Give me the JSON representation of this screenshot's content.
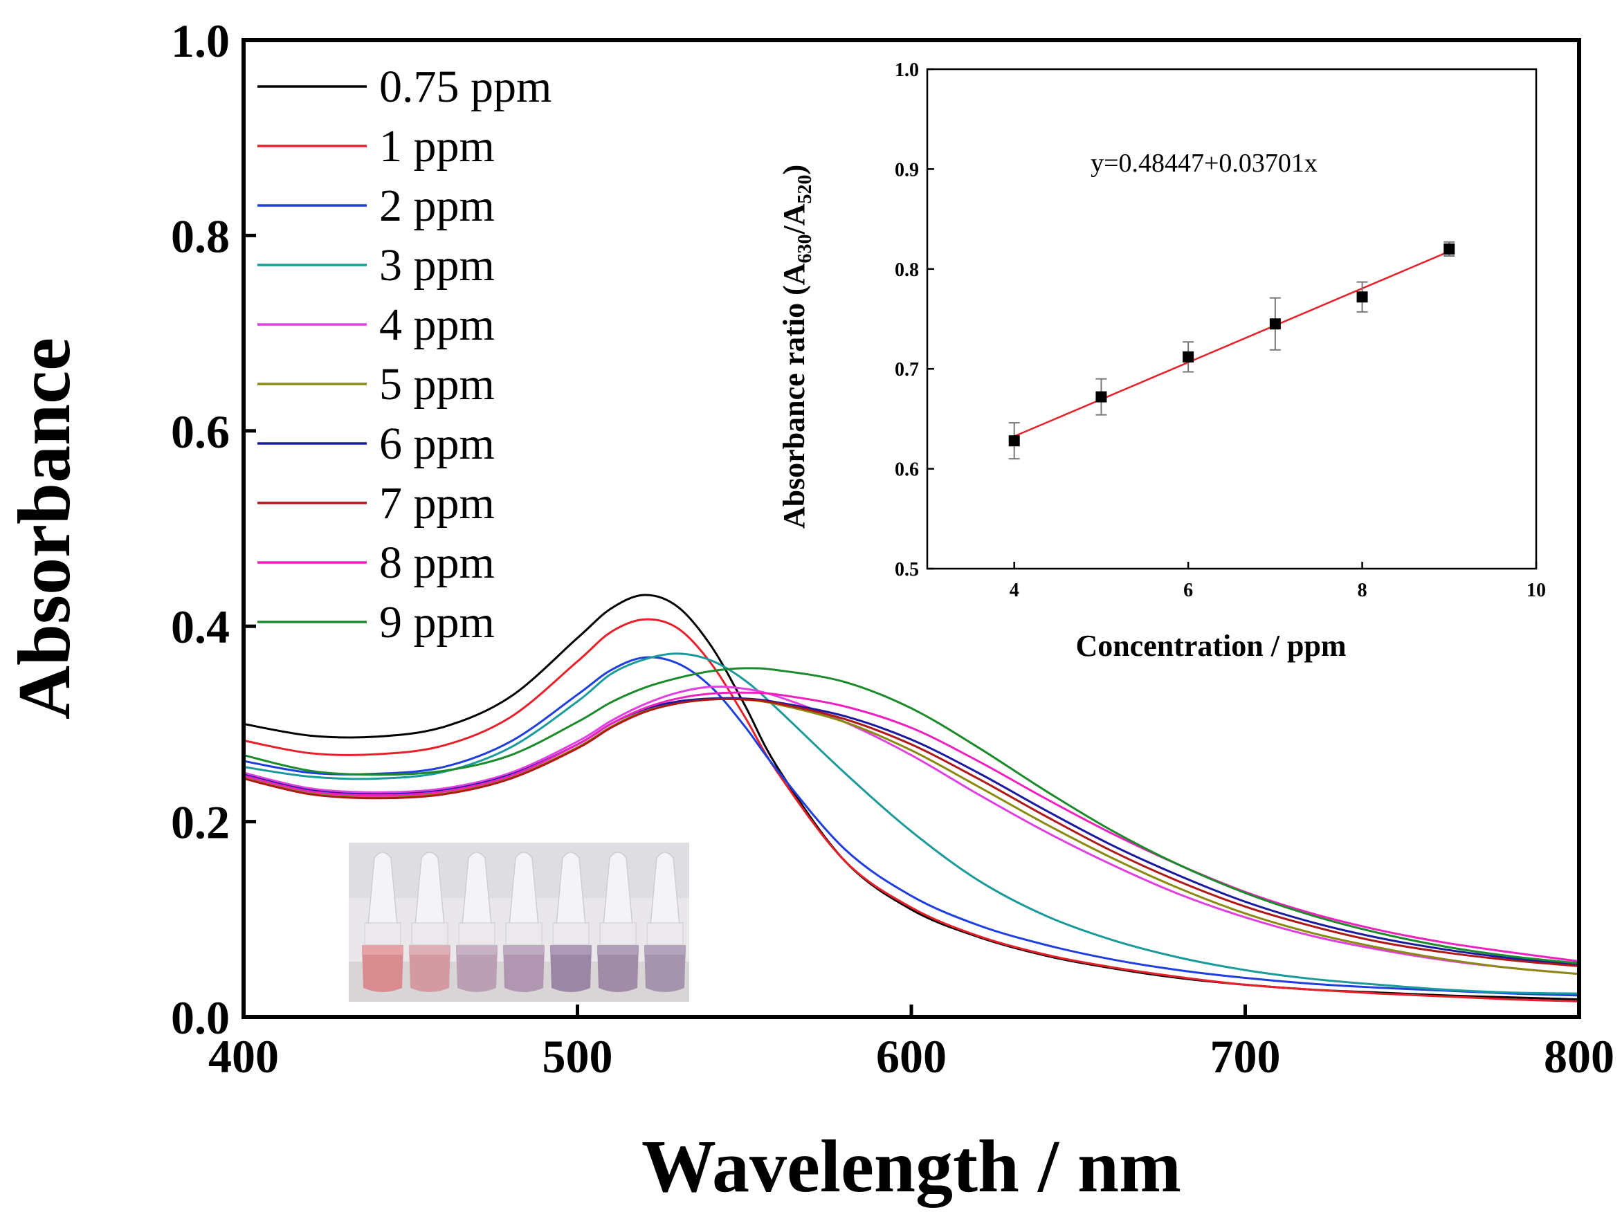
{
  "chart_data": [
    {
      "type": "line",
      "xlabel": "Wavelength / nm",
      "ylabel": "Absorbance",
      "xlim": [
        400,
        800
      ],
      "ylim": [
        0.0,
        1.0
      ],
      "xticks": [
        "400",
        "500",
        "600",
        "700",
        "800"
      ],
      "yticks": [
        "0.0",
        "0.2",
        "0.4",
        "0.6",
        "0.8",
        "1.0"
      ],
      "legend_position": "top-left",
      "x": [
        400,
        420,
        440,
        460,
        480,
        500,
        510,
        520,
        530,
        540,
        550,
        560,
        580,
        600,
        620,
        640,
        660,
        680,
        700,
        720,
        740,
        760,
        780,
        800
      ],
      "series": [
        {
          "name": "0.75 ppm",
          "color": "#000000",
          "values": [
            0.3,
            0.288,
            0.287,
            0.297,
            0.328,
            0.388,
            0.418,
            0.432,
            0.42,
            0.38,
            0.32,
            0.255,
            0.16,
            0.11,
            0.082,
            0.063,
            0.05,
            0.04,
            0.033,
            0.028,
            0.025,
            0.022,
            0.02,
            0.018
          ]
        },
        {
          "name": "1 ppm",
          "color": "#e8202a",
          "values": [
            0.283,
            0.27,
            0.269,
            0.278,
            0.307,
            0.364,
            0.394,
            0.407,
            0.398,
            0.362,
            0.308,
            0.25,
            0.16,
            0.112,
            0.083,
            0.064,
            0.051,
            0.041,
            0.033,
            0.028,
            0.024,
            0.021,
            0.018,
            0.016
          ]
        },
        {
          "name": "2 ppm",
          "color": "#1f3ee0",
          "values": [
            0.262,
            0.25,
            0.249,
            0.256,
            0.282,
            0.33,
            0.355,
            0.368,
            0.362,
            0.338,
            0.298,
            0.252,
            0.172,
            0.124,
            0.094,
            0.074,
            0.059,
            0.048,
            0.04,
            0.034,
            0.03,
            0.027,
            0.024,
            0.022
          ]
        },
        {
          "name": "3 ppm",
          "color": "#1a9a9a",
          "values": [
            0.256,
            0.246,
            0.244,
            0.251,
            0.276,
            0.323,
            0.351,
            0.366,
            0.372,
            0.365,
            0.345,
            0.315,
            0.25,
            0.19,
            0.14,
            0.104,
            0.079,
            0.061,
            0.048,
            0.039,
            0.033,
            0.028,
            0.025,
            0.024
          ]
        },
        {
          "name": "4 ppm",
          "color": "#e040e0",
          "values": [
            0.25,
            0.234,
            0.23,
            0.234,
            0.25,
            0.282,
            0.303,
            0.32,
            0.332,
            0.338,
            0.336,
            0.328,
            0.302,
            0.268,
            0.228,
            0.19,
            0.156,
            0.126,
            0.102,
            0.083,
            0.069,
            0.058,
            0.05,
            0.044
          ]
        },
        {
          "name": "5 ppm",
          "color": "#8a8a10",
          "values": [
            0.245,
            0.229,
            0.225,
            0.229,
            0.245,
            0.276,
            0.297,
            0.313,
            0.322,
            0.326,
            0.325,
            0.32,
            0.302,
            0.273,
            0.236,
            0.198,
            0.163,
            0.132,
            0.106,
            0.086,
            0.071,
            0.059,
            0.05,
            0.044
          ]
        },
        {
          "name": "6 ppm",
          "color": "#1a1aa0",
          "values": [
            0.248,
            0.232,
            0.228,
            0.232,
            0.248,
            0.279,
            0.3,
            0.315,
            0.323,
            0.326,
            0.326,
            0.322,
            0.308,
            0.284,
            0.25,
            0.212,
            0.176,
            0.145,
            0.118,
            0.097,
            0.081,
            0.069,
            0.06,
            0.053
          ]
        },
        {
          "name": "7 ppm",
          "color": "#b01818",
          "values": [
            0.244,
            0.228,
            0.224,
            0.228,
            0.244,
            0.275,
            0.296,
            0.312,
            0.321,
            0.325,
            0.325,
            0.321,
            0.305,
            0.279,
            0.244,
            0.206,
            0.17,
            0.139,
            0.113,
            0.093,
            0.077,
            0.066,
            0.058,
            0.052
          ]
        },
        {
          "name": "8 ppm",
          "color": "#f020c0",
          "values": [
            0.247,
            0.231,
            0.227,
            0.231,
            0.247,
            0.279,
            0.3,
            0.316,
            0.326,
            0.331,
            0.332,
            0.33,
            0.318,
            0.296,
            0.262,
            0.224,
            0.188,
            0.156,
            0.128,
            0.106,
            0.089,
            0.076,
            0.066,
            0.057
          ]
        },
        {
          "name": "9 ppm",
          "color": "#1a8a2a",
          "values": [
            0.268,
            0.252,
            0.248,
            0.252,
            0.268,
            0.302,
            0.322,
            0.337,
            0.347,
            0.354,
            0.357,
            0.355,
            0.343,
            0.316,
            0.276,
            0.232,
            0.191,
            0.156,
            0.127,
            0.104,
            0.086,
            0.072,
            0.062,
            0.055
          ]
        }
      ]
    },
    {
      "type": "scatter",
      "xlabel": "Concentration / ppm",
      "ylabel_main": "Absorbance ratio (A",
      "ylabel_sub1": "630",
      "ylabel_mid": "/A",
      "ylabel_sub2": "520",
      "ylabel_end": ")",
      "xlim": [
        3,
        10
      ],
      "ylim": [
        0.5,
        1.0
      ],
      "xticks": [
        "4",
        "6",
        "8",
        "10"
      ],
      "yticks": [
        "0.5",
        "0.6",
        "0.7",
        "0.8",
        "0.9",
        "1.0"
      ],
      "equation": "y=0.48447+0.03701x",
      "fit": {
        "intercept": 0.48447,
        "slope": 0.03701,
        "x_range": [
          4,
          9
        ],
        "color": "#e8202a"
      },
      "points": [
        {
          "x": 4,
          "y": 0.628,
          "err": 0.018
        },
        {
          "x": 5,
          "y": 0.672,
          "err": 0.018
        },
        {
          "x": 6,
          "y": 0.712,
          "err": 0.015
        },
        {
          "x": 7,
          "y": 0.745,
          "err": 0.026
        },
        {
          "x": 8,
          "y": 0.772,
          "err": 0.015
        },
        {
          "x": 9,
          "y": 0.82,
          "err": 0.007
        }
      ]
    }
  ],
  "photo": {
    "description_icon": "vials-photo",
    "vial_colors": [
      "#d98c90",
      "#d49aa2",
      "#bba0b4",
      "#b096b0",
      "#9c86a6",
      "#a18ca8",
      "#a494ae"
    ],
    "liquid_top_colors": [
      "#e5a3a6",
      "#ddb0b8",
      "#c7b2c4",
      "#bdaac0",
      "#ad9ab6",
      "#b09fb8",
      "#b3a6bc"
    ]
  }
}
